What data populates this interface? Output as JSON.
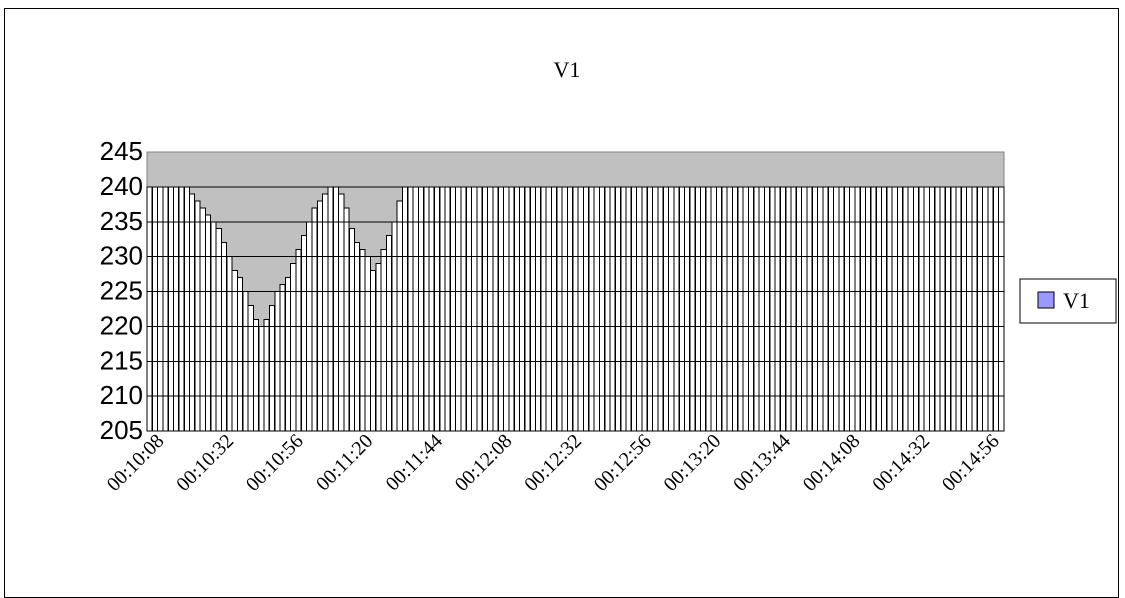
{
  "chart_data": {
    "type": "bar",
    "title": "V1",
    "xlabel": "",
    "ylabel": "",
    "ylim": [
      205,
      245
    ],
    "y_ticks": [
      205,
      210,
      215,
      220,
      225,
      230,
      235,
      240,
      245
    ],
    "x_tick_labels": [
      "00:10:08",
      "00:10:32",
      "00:10:56",
      "00:11:20",
      "00:11:44",
      "00:12:08",
      "00:12:32",
      "00:12:56",
      "00:13:20",
      "00:13:44",
      "00:14:08",
      "00:14:32",
      "00:14:56"
    ],
    "legend_position": "right",
    "grid": true,
    "colors": {
      "plot_background": "#c0c0c0",
      "bar_fill": "#ffffff",
      "bar_stroke": "#000000",
      "legend_swatch": "#9999ff"
    },
    "series": [
      {
        "name": "V1",
        "values": [
          240,
          240,
          240,
          240,
          240,
          240,
          240,
          240,
          239,
          238,
          237,
          236,
          235,
          234,
          232,
          230,
          228,
          227,
          225,
          223,
          221,
          220,
          221,
          223,
          225,
          226,
          227,
          229,
          231,
          233,
          235,
          237,
          238,
          239,
          240,
          240,
          239,
          237,
          234,
          232,
          231,
          230,
          228,
          229,
          231,
          233,
          235,
          238,
          240,
          240,
          240,
          240,
          240,
          240,
          240,
          240,
          240,
          240,
          240,
          240,
          240,
          240,
          240,
          240,
          240,
          240,
          240,
          240,
          240,
          240,
          240,
          240,
          240,
          240,
          240,
          240,
          240,
          240,
          240,
          240,
          240,
          240,
          240,
          240,
          240,
          240,
          240,
          240,
          240,
          240,
          240,
          240,
          240,
          240,
          240,
          240,
          240,
          240,
          240,
          240,
          240,
          240,
          240,
          240,
          240,
          240,
          240,
          240,
          240,
          240,
          240,
          240,
          240,
          240,
          240,
          240,
          240,
          240,
          240,
          240,
          240,
          240,
          240,
          240,
          240,
          240,
          240,
          240,
          240,
          240,
          240,
          240,
          240,
          240,
          240,
          240,
          240,
          240,
          240,
          240,
          240,
          240,
          240,
          240,
          240,
          240,
          240,
          240,
          240,
          240,
          240,
          240,
          240,
          240,
          240,
          240,
          240,
          240,
          240,
          240,
          240
        ]
      }
    ]
  }
}
